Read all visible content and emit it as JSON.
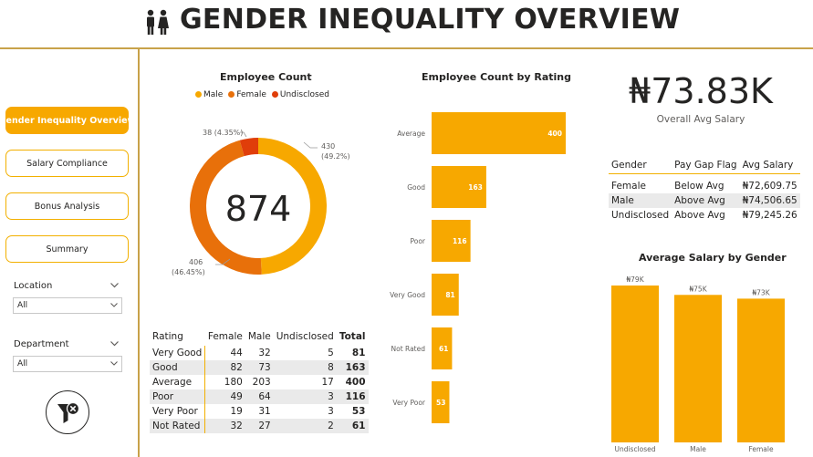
{
  "header": {
    "title": "GENDER INEQUALITY OVERVIEW"
  },
  "nav": [
    {
      "label": "Gender Inequality Overview",
      "active": true
    },
    {
      "label": "Salary Compliance",
      "active": false
    },
    {
      "label": "Bonus Analysis",
      "active": false
    },
    {
      "label": "Summary",
      "active": false
    }
  ],
  "slicers": {
    "location": {
      "title": "Location",
      "value": "All"
    },
    "department": {
      "title": "Department",
      "value": "All"
    }
  },
  "colors": {
    "male": "#f7a800",
    "female": "#e8700a",
    "undisclosed": "#e03e0a",
    "bar": "#f7a800",
    "accent": "#c8a24a"
  },
  "icons": {
    "title": "people-icon",
    "filter": "clear-filter-icon"
  },
  "kpi": {
    "value": "₦73.83K",
    "label": "Overall Avg Salary"
  },
  "donut": {
    "title": "Employee Count",
    "center": "874",
    "legend": [
      "Male",
      "Female",
      "Undisclosed"
    ],
    "labels": {
      "male": "430",
      "male_pct": "(49.2%)",
      "female": "406",
      "female_pct": "(46.45%)",
      "undisclosed": "38 (4.35%)"
    }
  },
  "rating_chart_title": "Employee Count by Rating",
  "salary_chart_title": "Average Salary by Gender",
  "rating_table": {
    "headers": [
      "Rating",
      "Female",
      "Male",
      "Undisclosed",
      "Total"
    ],
    "rows": [
      [
        "Very Good",
        "44",
        "32",
        "5",
        "81"
      ],
      [
        "Good",
        "82",
        "73",
        "8",
        "163"
      ],
      [
        "Average",
        "180",
        "203",
        "17",
        "400"
      ],
      [
        "Poor",
        "49",
        "64",
        "3",
        "116"
      ],
      [
        "Very Poor",
        "19",
        "31",
        "3",
        "53"
      ],
      [
        "Not Rated",
        "32",
        "27",
        "2",
        "61"
      ]
    ]
  },
  "gap_table": {
    "headers": [
      "Gender",
      "Pay Gap Flag",
      "Avg Salary"
    ],
    "rows": [
      [
        "Female",
        "Below Avg",
        "₦72,609.75"
      ],
      [
        "Male",
        "Above Avg",
        "₦74,506.65"
      ],
      [
        "Undisclosed",
        "Above Avg",
        "₦79,245.26"
      ]
    ]
  },
  "chart_data": [
    {
      "type": "pie",
      "title": "Employee Count",
      "categories": [
        "Male",
        "Female",
        "Undisclosed"
      ],
      "values": [
        430,
        406,
        38
      ],
      "percentages": [
        49.2,
        46.45,
        4.35
      ],
      "legend_position": "top"
    },
    {
      "type": "bar",
      "orientation": "horizontal",
      "title": "Employee Count by Rating",
      "categories": [
        "Average",
        "Good",
        "Poor",
        "Very Good",
        "Not Rated",
        "Very Poor"
      ],
      "values": [
        400,
        163,
        116,
        81,
        61,
        53
      ],
      "xlim": [
        0,
        400
      ]
    },
    {
      "type": "bar",
      "title": "Average Salary by Gender",
      "categories": [
        "Undisclosed",
        "Male",
        "Female"
      ],
      "values": [
        79245.26,
        74506.65,
        72609.75
      ],
      "data_labels": [
        "₦79K",
        "₦75K",
        "₦73K"
      ],
      "ylim": [
        0,
        79245.26
      ]
    }
  ]
}
